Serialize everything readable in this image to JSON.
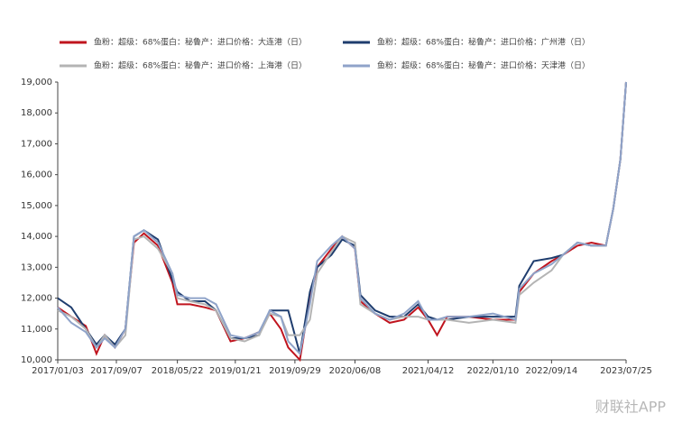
{
  "chart_data": {
    "type": "line",
    "x": [
      "2017/01/03",
      "2017/03/01",
      "2017/05/01",
      "2017/06/15",
      "2017/07/20",
      "2017/09/01",
      "2017/10/15",
      "2017/11/20",
      "2018/01/01",
      "2018/03/01",
      "2018/05/01",
      "2018/05/22",
      "2018/07/15",
      "2018/09/15",
      "2018/11/01",
      "2019/01/01",
      "2019/03/01",
      "2019/05/01",
      "2019/06/15",
      "2019/08/01",
      "2019/09/01",
      "2019/10/20",
      "2019/12/01",
      "2020/01/01",
      "2020/03/01",
      "2020/04/15",
      "2020/06/08",
      "2020/07/01",
      "2020/09/01",
      "2020/11/01",
      "2021/01/01",
      "2021/03/01",
      "2021/04/12",
      "2021/05/20",
      "2021/07/01",
      "2021/10/01",
      "2022/01/10",
      "2022/04/15",
      "2022/05/01",
      "2022/07/01",
      "2022/09/14",
      "2022/11/01",
      "2023/01/01",
      "2023/03/01",
      "2023/05/01",
      "2023/06/01",
      "2023/07/01",
      "2023/07/25"
    ],
    "series": [
      {
        "name": "鱼粉：超级：68%蛋白：秘鲁产：进口价格：大连港（日）",
        "color": "#c0141e",
        "values": [
          11700,
          11400,
          11100,
          10200,
          10800,
          10400,
          11000,
          13800,
          14100,
          13700,
          12500,
          11800,
          11800,
          11700,
          11600,
          10600,
          10700,
          10900,
          11500,
          11000,
          10400,
          10000,
          12000,
          13000,
          13600,
          14000,
          13600,
          11900,
          11500,
          11200,
          11300,
          11700,
          11300,
          10800,
          11400,
          11400,
          11300,
          11300,
          12200,
          12800,
          13200,
          13400,
          13700,
          13800,
          13700,
          14900,
          16500,
          19000
        ]
      },
      {
        "name": "鱼粉：超级：68%蛋白：秘鲁产：进口价格：广州港（日）",
        "color": "#1f3d6e",
        "values": [
          12000,
          11700,
          11000,
          10500,
          10800,
          10500,
          11000,
          14000,
          14200,
          13900,
          12600,
          12200,
          11900,
          11900,
          11600,
          10700,
          10700,
          10800,
          11600,
          11600,
          11600,
          10200,
          12200,
          13000,
          13400,
          13900,
          13700,
          12100,
          11600,
          11400,
          11400,
          11800,
          11400,
          11300,
          11300,
          11400,
          11400,
          11400,
          12400,
          13200,
          13300,
          13400,
          13800,
          13700,
          13700,
          14900,
          16500,
          19000
        ]
      },
      {
        "name": "鱼粉：超级：68%蛋白：秘鲁产：进口价格：上海港（日）",
        "color": "#b4b4b4",
        "values": [
          11600,
          11400,
          11000,
          10400,
          10800,
          10400,
          10800,
          13900,
          14000,
          13600,
          12800,
          12000,
          11900,
          11800,
          11600,
          10700,
          10600,
          10800,
          11500,
          11400,
          10800,
          10800,
          11300,
          12800,
          13500,
          14000,
          13800,
          11800,
          11500,
          11300,
          11400,
          11400,
          11300,
          11300,
          11300,
          11200,
          11300,
          11200,
          12100,
          12500,
          12900,
          13400,
          13800,
          13700,
          13700,
          14900,
          16500,
          19000
        ]
      },
      {
        "name": "鱼粉：超级：68%蛋白：秘鲁产：进口价格：天津港（日）",
        "color": "#8fa3c9",
        "values": [
          11700,
          11200,
          10900,
          10400,
          10700,
          10400,
          11000,
          14000,
          14200,
          13800,
          12800,
          12100,
          12000,
          12000,
          11800,
          10800,
          10700,
          10900,
          11600,
          11400,
          10600,
          10200,
          11800,
          13200,
          13700,
          14000,
          13600,
          12000,
          11500,
          11300,
          11500,
          11900,
          11300,
          11300,
          11400,
          11400,
          11500,
          11300,
          12300,
          12800,
          13100,
          13400,
          13800,
          13700,
          13700,
          14900,
          16500,
          19000
        ]
      }
    ],
    "xlim": [
      "2017/01/03",
      "2023/07/25"
    ],
    "xticks": [
      "2017/01/03",
      "2017/09/07",
      "2018/05/22",
      "2019/01/21",
      "2019/09/29",
      "2020/06/08",
      "2021/04/12",
      "2022/01/10",
      "2022/09/14",
      "2023/07/25"
    ],
    "ylim": [
      10000,
      19000
    ],
    "yticks": [
      {
        "value": 10000,
        "label": "10,000"
      },
      {
        "value": 11000,
        "label": "11,000"
      },
      {
        "value": 12000,
        "label": "12,000"
      },
      {
        "value": 13000,
        "label": "13,000"
      },
      {
        "value": 14000,
        "label": "14,000"
      },
      {
        "value": 15000,
        "label": "15,000"
      },
      {
        "value": 16000,
        "label": "16,000"
      },
      {
        "value": 17000,
        "label": "17,000"
      },
      {
        "value": 18000,
        "label": "18,000"
      },
      {
        "value": 19000,
        "label": "19,000"
      }
    ],
    "watermark": "财联社APP"
  }
}
